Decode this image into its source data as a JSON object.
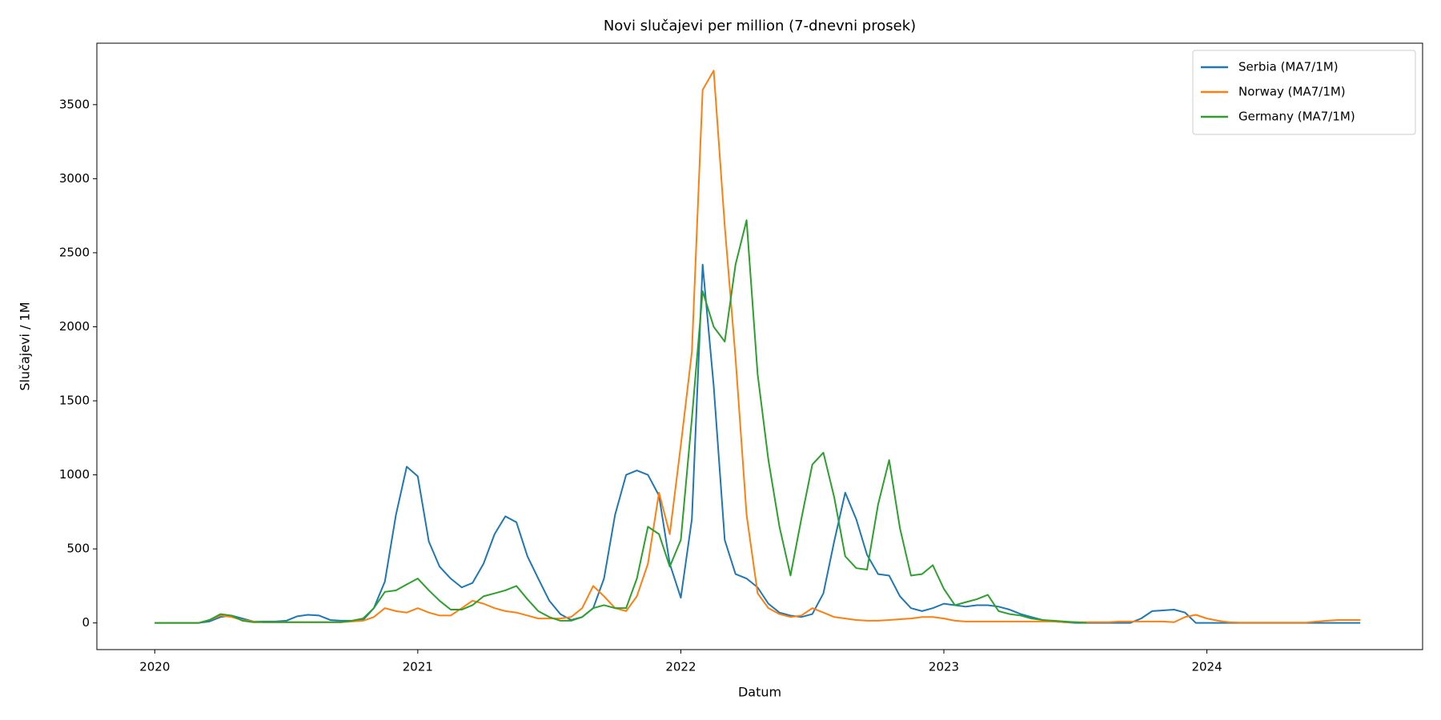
{
  "chart_data": {
    "type": "line",
    "title": "Novi slučajevi per million (7-dnevni prosek)",
    "xlabel": "Datum",
    "ylabel": "Slučajevi / 1M",
    "x": [
      2020,
      2020.042,
      2020.083,
      2020.125,
      2020.167,
      2020.208,
      2020.25,
      2020.292,
      2020.333,
      2020.375,
      2020.417,
      2020.458,
      2020.5,
      2020.542,
      2020.583,
      2020.625,
      2020.667,
      2020.708,
      2020.75,
      2020.792,
      2020.833,
      2020.875,
      2020.917,
      2020.958,
      2021,
      2021.042,
      2021.083,
      2021.125,
      2021.167,
      2021.208,
      2021.25,
      2021.292,
      2021.333,
      2021.375,
      2021.417,
      2021.458,
      2021.5,
      2021.542,
      2021.583,
      2021.625,
      2021.667,
      2021.708,
      2021.75,
      2021.792,
      2021.833,
      2021.875,
      2021.917,
      2021.958,
      2022,
      2022.042,
      2022.083,
      2022.125,
      2022.167,
      2022.208,
      2022.25,
      2022.292,
      2022.333,
      2022.375,
      2022.417,
      2022.458,
      2022.5,
      2022.542,
      2022.583,
      2022.625,
      2022.667,
      2022.708,
      2022.75,
      2022.792,
      2022.833,
      2022.875,
      2022.917,
      2022.958,
      2023,
      2023.042,
      2023.083,
      2023.125,
      2023.167,
      2023.208,
      2023.25,
      2023.292,
      2023.333,
      2023.375,
      2023.417,
      2023.458,
      2023.5,
      2023.542,
      2023.583,
      2023.625,
      2023.667,
      2023.708,
      2023.75,
      2023.792,
      2023.833,
      2023.875,
      2023.917,
      2023.958,
      2024,
      2024.042,
      2024.083,
      2024.125,
      2024.167,
      2024.208,
      2024.25,
      2024.292,
      2024.333,
      2024.375,
      2024.417,
      2024.458,
      2024.5,
      2024.542,
      2024.583
    ],
    "series": [
      {
        "name": "Serbia (MA7/1M)",
        "color": "#1f77b4",
        "values": [
          0,
          0,
          0,
          0,
          0,
          10,
          40,
          50,
          30,
          10,
          10,
          10,
          15,
          45,
          55,
          50,
          20,
          15,
          15,
          20,
          100,
          280,
          730,
          1055,
          990,
          550,
          380,
          300,
          240,
          270,
          400,
          600,
          720,
          680,
          450,
          300,
          150,
          60,
          20,
          40,
          100,
          300,
          730,
          1000,
          1030,
          1000,
          860,
          400,
          170,
          700,
          2420,
          1600,
          560,
          330,
          300,
          240,
          130,
          70,
          50,
          40,
          60,
          200,
          550,
          880,
          700,
          460,
          330,
          320,
          180,
          100,
          80,
          100,
          130,
          120,
          110,
          120,
          120,
          110,
          90,
          60,
          40,
          20,
          10,
          5,
          0,
          0,
          0,
          0,
          0,
          0,
          30,
          80,
          85,
          90,
          70,
          0,
          0,
          0,
          0,
          0,
          0,
          0,
          0,
          0,
          0,
          0,
          0,
          0,
          0,
          0,
          0
        ]
      },
      {
        "name": "Norway (MA7/1M)",
        "color": "#ff7f0e",
        "values": [
          0,
          0,
          0,
          0,
          0,
          20,
          50,
          40,
          20,
          10,
          5,
          5,
          5,
          5,
          5,
          5,
          5,
          5,
          10,
          15,
          40,
          100,
          80,
          70,
          100,
          70,
          50,
          50,
          100,
          150,
          130,
          100,
          80,
          70,
          50,
          30,
          30,
          30,
          40,
          100,
          250,
          180,
          100,
          80,
          180,
          400,
          880,
          600,
          1200,
          1830,
          3600,
          3730,
          2680,
          1790,
          730,
          200,
          100,
          60,
          40,
          50,
          100,
          70,
          40,
          30,
          20,
          15,
          15,
          20,
          25,
          30,
          40,
          40,
          30,
          15,
          10,
          10,
          10,
          10,
          10,
          10,
          10,
          10,
          10,
          5,
          5,
          5,
          5,
          5,
          10,
          10,
          10,
          10,
          10,
          5,
          40,
          55,
          30,
          15,
          5,
          2,
          2,
          2,
          2,
          2,
          2,
          2,
          10,
          15,
          20,
          20,
          20
        ]
      },
      {
        "name": "Germany (MA7/1M)",
        "color": "#2ca02c",
        "values": [
          0,
          0,
          0,
          0,
          0,
          20,
          60,
          50,
          15,
          5,
          5,
          5,
          5,
          5,
          5,
          5,
          5,
          5,
          15,
          30,
          100,
          210,
          220,
          260,
          300,
          220,
          150,
          90,
          90,
          120,
          180,
          200,
          220,
          250,
          160,
          80,
          40,
          15,
          15,
          40,
          100,
          120,
          100,
          100,
          300,
          650,
          600,
          380,
          560,
          1380,
          2240,
          2000,
          1900,
          2420,
          2720,
          1680,
          1100,
          650,
          320,
          700,
          1070,
          1150,
          850,
          450,
          370,
          360,
          800,
          1100,
          640,
          320,
          330,
          390,
          230,
          120,
          140,
          160,
          190,
          80,
          60,
          50,
          30,
          20,
          15,
          10,
          5,
          0,
          null,
          null,
          null,
          null,
          null,
          null,
          null,
          null,
          null,
          null,
          null,
          null,
          null,
          null,
          null,
          null,
          null,
          null,
          null,
          null,
          null,
          null,
          null,
          null,
          null
        ]
      }
    ],
    "xlim": [
      2019.78,
      2024.82
    ],
    "ylim": [
      -180,
      3915
    ],
    "xticks": [
      2020,
      2021,
      2022,
      2023,
      2024
    ],
    "yticks": [
      0,
      500,
      1000,
      1500,
      2000,
      2500,
      3000,
      3500
    ],
    "grid": false,
    "legend": "upper right"
  }
}
